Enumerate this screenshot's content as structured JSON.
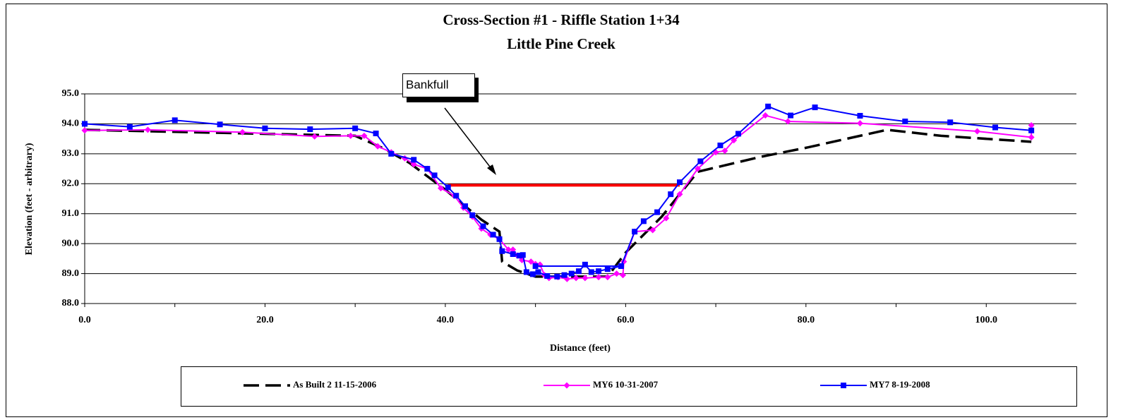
{
  "chart_data": {
    "type": "line",
    "title": "Cross-Section #1 - Riffle Station 1+34",
    "subtitle": "Little Pine Creek",
    "x_label": "Distance (feet)",
    "y_label": "Elevation (feet - arbitrary)",
    "xlim": [
      0,
      110
    ],
    "xticks": [
      {
        "value": 0,
        "label": "0.0"
      },
      {
        "value": 20,
        "label": "20.0"
      },
      {
        "value": 40,
        "label": "40.0"
      },
      {
        "value": 60,
        "label": "60.0"
      },
      {
        "value": 80,
        "label": "80.0"
      },
      {
        "value": 100,
        "label": "100.0"
      }
    ],
    "ylim": [
      88,
      95
    ],
    "yticks": [
      {
        "value": 88,
        "label": "88.0"
      },
      {
        "value": 89,
        "label": "89.0"
      },
      {
        "value": 90,
        "label": "90.0"
      },
      {
        "value": 91,
        "label": "91.0"
      },
      {
        "value": 92,
        "label": "92.0"
      },
      {
        "value": 93,
        "label": "93.0"
      },
      {
        "value": 94,
        "label": "94.0"
      },
      {
        "value": 95,
        "label": "95.0"
      }
    ],
    "grid": true,
    "legend": "bottom",
    "annotation": {
      "text": "Bankfull",
      "x": [
        40.3,
        66
      ],
      "y": 91.95,
      "color": "#ff0000"
    },
    "series": [
      {
        "name": "As Built 2 11-15-2006",
        "color": "#000000",
        "dash": true,
        "marker": "none",
        "x": [
          0,
          30,
          33,
          36,
          40,
          44,
          46,
          46.3,
          48,
          50,
          55,
          58,
          60,
          64,
          68,
          75,
          80,
          89,
          95,
          105
        ],
        "values": [
          93.8,
          93.6,
          93.2,
          92.7,
          91.8,
          90.8,
          90.4,
          89.4,
          89.1,
          88.9,
          88.9,
          88.9,
          89.7,
          90.9,
          92.4,
          92.9,
          93.2,
          93.8,
          93.6,
          93.4
        ]
      },
      {
        "name": "MY6  10-31-2007",
        "color": "#ff00ff",
        "marker": "diamond",
        "x": [
          0,
          7,
          17.5,
          25.5,
          29.5,
          31,
          32.5,
          34,
          35.5,
          36.5,
          38,
          39.5,
          41,
          42,
          43,
          44,
          45,
          46,
          47,
          47.5,
          48,
          48.5,
          49.5,
          50,
          50.5,
          51,
          51.5,
          52.5,
          53.5,
          54.5,
          55.5,
          57,
          58,
          59,
          59.7,
          59.8,
          61,
          63,
          64.5,
          66,
          68,
          70,
          71,
          72,
          75.5,
          78,
          86,
          99,
          105,
          105
        ],
        "values": [
          93.78,
          93.8,
          93.72,
          93.58,
          93.6,
          93.6,
          93.25,
          93.05,
          92.85,
          92.65,
          92.5,
          91.85,
          91.6,
          91.2,
          90.9,
          90.5,
          90.3,
          90.15,
          89.8,
          89.8,
          89.6,
          89.45,
          89.4,
          89.32,
          89.3,
          88.95,
          88.85,
          88.88,
          88.82,
          88.85,
          88.85,
          88.88,
          88.88,
          89.0,
          88.95,
          89.4,
          90.4,
          90.45,
          90.85,
          91.65,
          92.5,
          93.05,
          93.1,
          93.45,
          94.28,
          94.08,
          94.02,
          93.75,
          93.55,
          93.95
        ]
      },
      {
        "name": "MY7 8-19-2008",
        "color": "#0000ff",
        "marker": "square",
        "x": [
          0,
          5,
          10,
          15,
          20,
          25,
          30,
          32.3,
          34,
          36.5,
          38,
          38.8,
          40.3,
          41.2,
          42.2,
          43,
          44.2,
          45.3,
          46,
          46.3,
          47.5,
          48.2,
          48.6,
          49,
          49.7,
          50.3,
          51.3,
          52.4,
          53.2,
          54,
          54.8,
          55.5,
          56.2,
          57,
          58,
          59.5,
          50,
          59.5,
          61,
          62,
          63.5,
          65,
          66,
          68.3,
          70.5,
          72.5,
          75.8,
          78.3,
          81,
          86,
          91,
          96,
          101,
          105
        ],
        "values": [
          94.0,
          93.9,
          94.12,
          93.98,
          93.85,
          93.82,
          93.85,
          93.68,
          93.0,
          92.8,
          92.5,
          92.28,
          91.88,
          91.6,
          91.25,
          90.95,
          90.58,
          90.3,
          90.15,
          89.75,
          89.65,
          89.6,
          89.62,
          89.05,
          88.98,
          89.05,
          88.92,
          88.9,
          88.95,
          89.0,
          89.08,
          89.3,
          89.05,
          89.08,
          89.15,
          89.25,
          89.25,
          89.25,
          90.4,
          90.75,
          91.05,
          91.65,
          92.05,
          92.75,
          93.28,
          93.67,
          94.58,
          94.28,
          94.55,
          94.27,
          94.08,
          94.05,
          93.88,
          93.78
        ]
      }
    ]
  }
}
